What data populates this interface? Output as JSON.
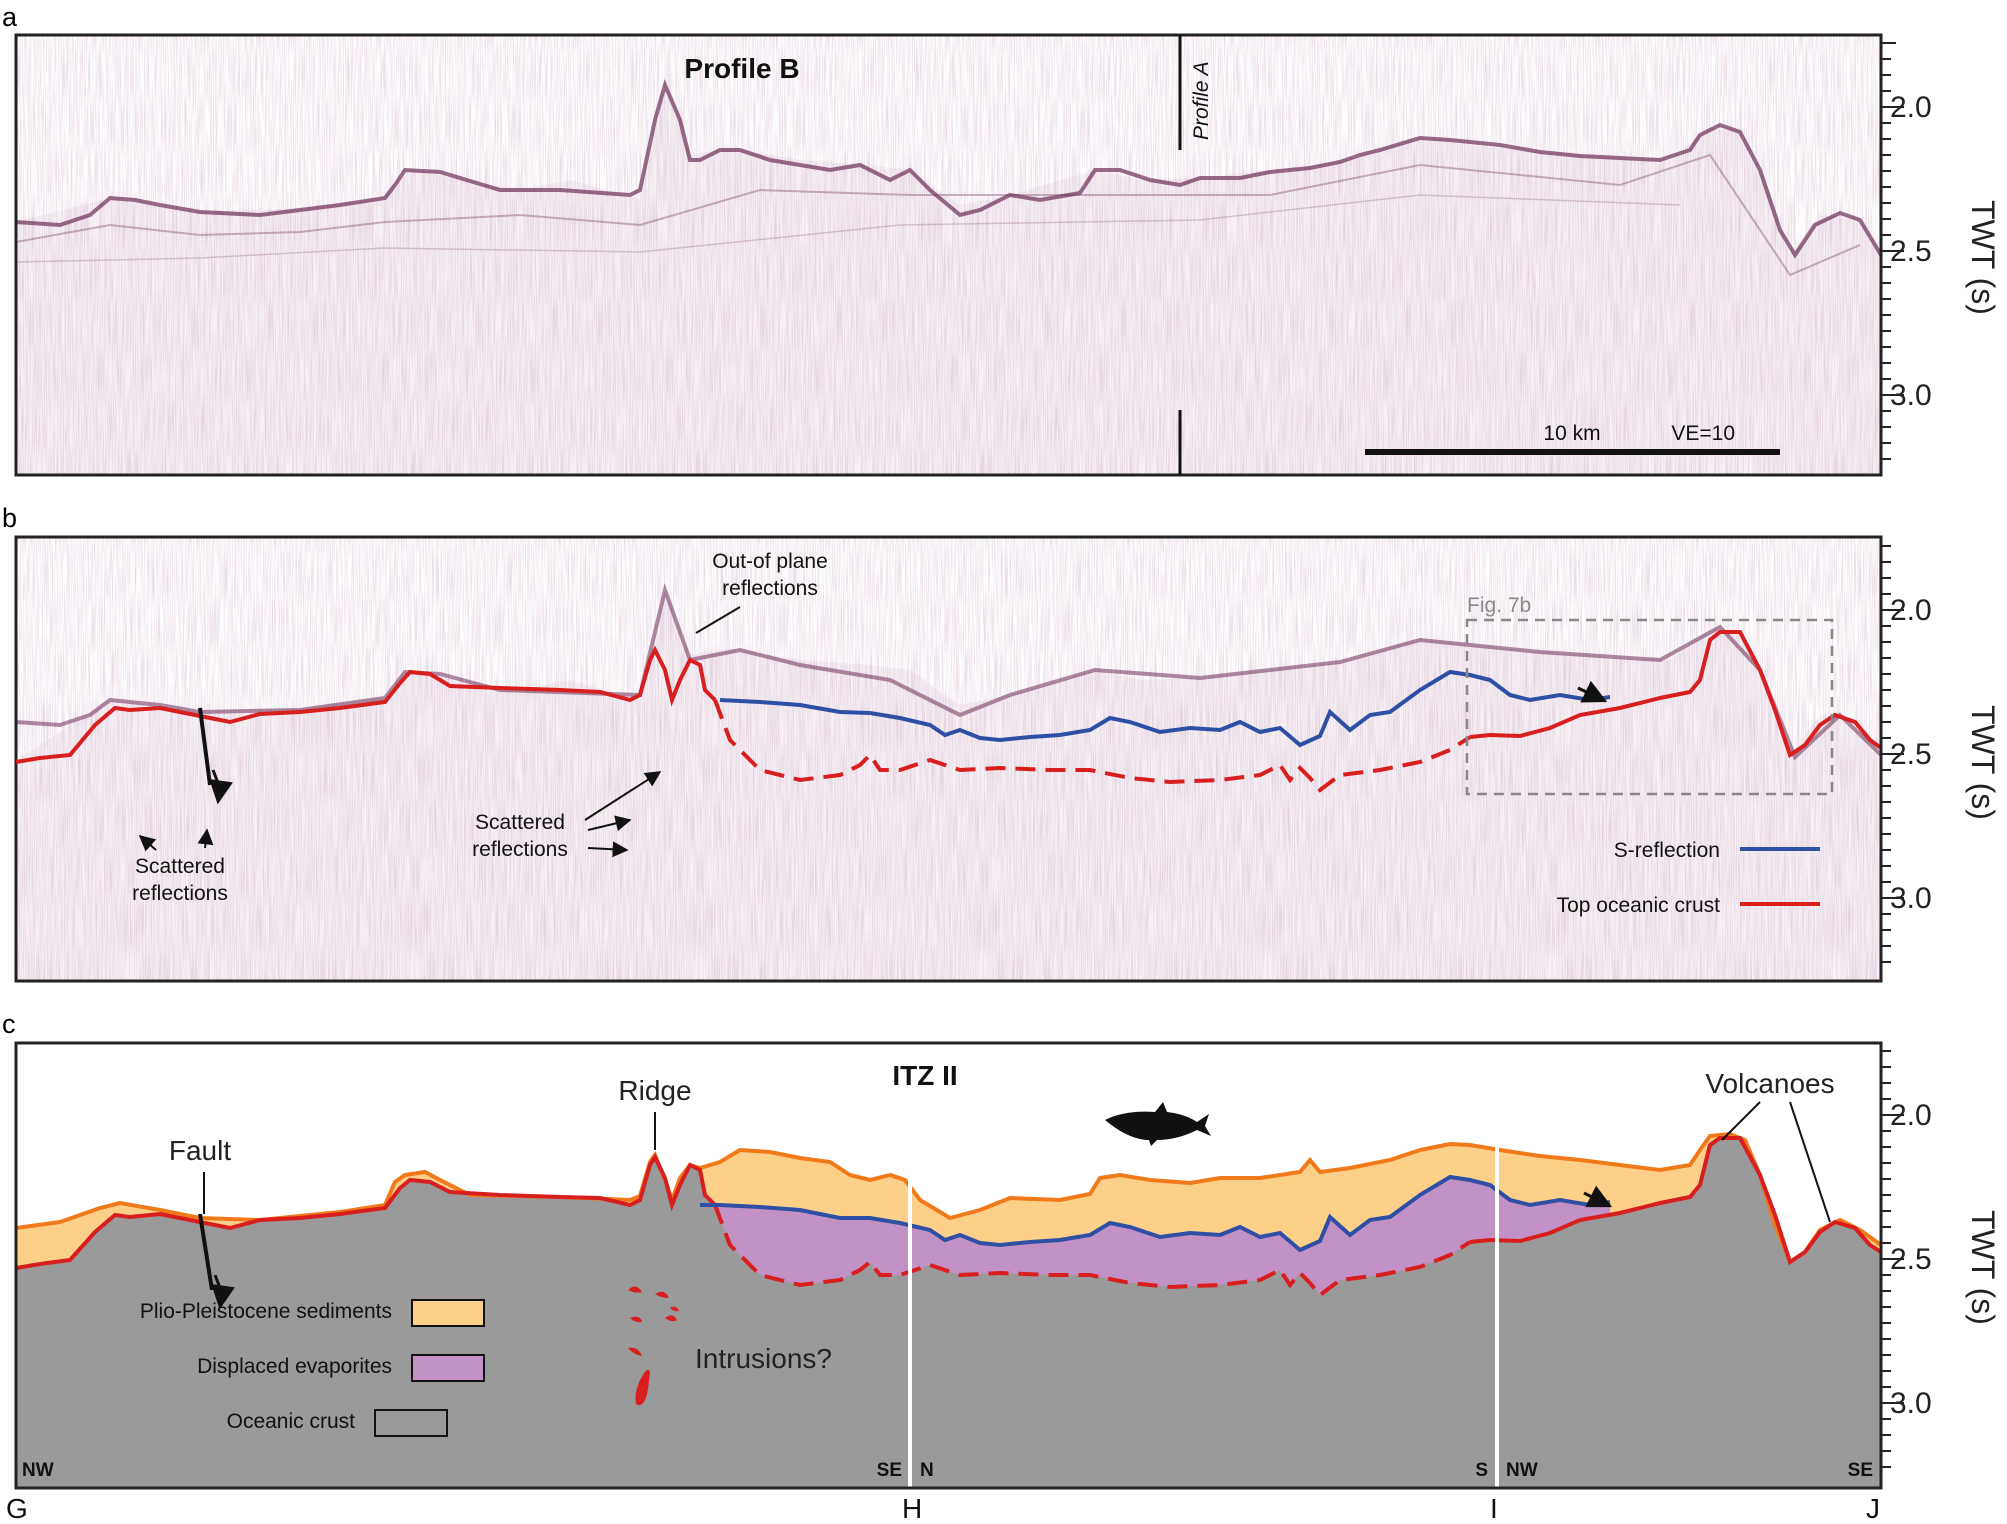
{
  "panels": {
    "a": {
      "label": "a",
      "title": "Profile B",
      "cross_profile": "Profile A",
      "scale_label": "10 km",
      "ve_label": "VE=10"
    },
    "b": {
      "label": "b",
      "annotation_out_of_plane_1": "Out-of plane",
      "annotation_out_of_plane_2": "reflections",
      "scattered_left_1": "Scattered",
      "scattered_left_2": "reflections",
      "scattered_mid_1": "Scattered",
      "scattered_mid_2": "reflections",
      "fig_ref": "Fig. 7b",
      "legend": [
        {
          "label": "S-reflection",
          "color": "#2e4fa3"
        },
        {
          "label": "Top oceanic crust",
          "color": "#e0201e"
        }
      ]
    },
    "c": {
      "label": "c",
      "title": "ITZ II",
      "fault": "Fault",
      "ridge": "Ridge",
      "volcanoes": "Volcanoes",
      "intrusions": "Intrusions?",
      "legend": [
        {
          "label": "Plio-Pleistocene sediments",
          "color": "#fdd08a"
        },
        {
          "label": "Displaced evaporites",
          "color": "#c291c6"
        },
        {
          "label": "Oceanic crust",
          "color": "#9a9a9a"
        }
      ],
      "directions": [
        "NW",
        "SE",
        "N",
        "S",
        "NW",
        "SE"
      ]
    }
  },
  "axis": {
    "label": "TWT (s)",
    "ticks": [
      "2.0",
      "2.5",
      "3.0"
    ]
  },
  "profile_points": [
    "G",
    "H",
    "I",
    "J"
  ],
  "colors": {
    "sediment": "#fdd08a",
    "evaporite": "#c291c6",
    "crust": "#9a9a9a",
    "seafloor": "#f07a1a",
    "top_crust": "#d81e1e",
    "s_reflection": "#2e4fa3"
  }
}
